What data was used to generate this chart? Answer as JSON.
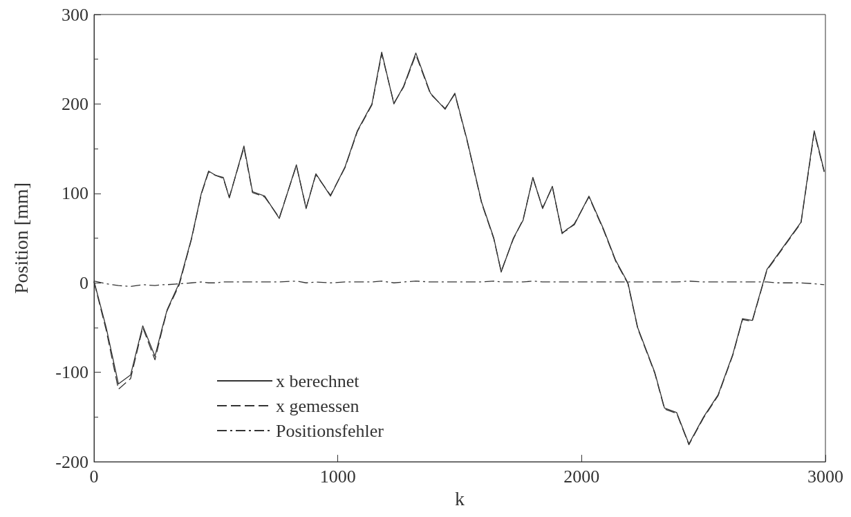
{
  "chart_data": {
    "type": "line",
    "xlabel": "k",
    "ylabel": "Position [mm]",
    "xlim": [
      0,
      3000
    ],
    "xticks": [
      0,
      1000,
      2000,
      3000
    ],
    "ylim": [
      -200,
      300
    ],
    "yticks": [
      -200,
      -100,
      0,
      100,
      200,
      300
    ],
    "grid": false,
    "legend": "bottom left",
    "marker": "none",
    "x": [
      0,
      50,
      100,
      150,
      200,
      250,
      280,
      300,
      350,
      400,
      440,
      470,
      500,
      530,
      555,
      615,
      650,
      700,
      760,
      830,
      870,
      910,
      970,
      1030,
      1080,
      1140,
      1180,
      1230,
      1270,
      1320,
      1380,
      1440,
      1480,
      1530,
      1590,
      1640,
      1670,
      1720,
      1760,
      1800,
      1840,
      1880,
      1920,
      1940,
      1970,
      2030,
      2090,
      2140,
      2190,
      2230,
      2300,
      2340,
      2390,
      2440,
      2500,
      2560,
      2620,
      2660,
      2700,
      2760,
      2800,
      2900,
      2954,
      2995
    ],
    "series": [
      {
        "name": "x berechnet",
        "color": "#333333",
        "line_style": "solid",
        "values": [
          2,
          -50,
          -113,
          -103,
          -48,
          -82,
          -50,
          -30,
          0,
          50,
          100,
          125,
          120,
          118,
          95,
          153,
          102,
          97,
          72,
          132,
          83,
          122,
          97,
          130,
          170,
          200,
          258,
          200,
          220,
          257,
          212,
          194,
          212,
          160,
          90,
          50,
          12,
          50,
          70,
          118,
          83,
          108,
          55,
          60,
          65,
          97,
          60,
          25,
          0,
          -50,
          -100,
          -140,
          -145,
          -180,
          -150,
          -125,
          -80,
          -40,
          -42,
          15,
          30,
          68,
          170,
          125
        ]
      },
      {
        "name": "x gemessen",
        "color": "#333333",
        "line_style": "dashed",
        "values": [
          1,
          -53,
          -119,
          -107,
          -50,
          -86,
          -52,
          -31,
          -2,
          49,
          99,
          124,
          120,
          117,
          96,
          151,
          101,
          96,
          73,
          131,
          84,
          121,
          98,
          129,
          169,
          199,
          256,
          201,
          219,
          255,
          211,
          195,
          211,
          159,
          89,
          49,
          13,
          49,
          71,
          117,
          84,
          107,
          56,
          59,
          66,
          96,
          59,
          24,
          -1,
          -51,
          -101,
          -141,
          -146,
          -181,
          -151,
          -126,
          -81,
          -41,
          -43,
          14,
          29,
          67,
          168,
          124
        ]
      },
      {
        "name": "Positionsfehler",
        "color": "#333333",
        "line_style": "dashdot",
        "values": [
          2,
          -1,
          -3,
          -4,
          -2,
          -3,
          -2,
          -2,
          -1,
          0,
          1,
          0,
          0,
          1,
          1,
          1,
          1,
          1,
          1,
          2,
          0,
          1,
          0,
          1,
          1,
          1,
          2,
          0,
          1,
          2,
          1,
          1,
          1,
          1,
          1,
          2,
          1,
          1,
          1,
          2,
          1,
          1,
          1,
          1,
          1,
          1,
          1,
          1,
          1,
          1,
          1,
          1,
          1,
          2,
          1,
          1,
          1,
          1,
          1,
          1,
          0,
          0,
          -1,
          -2
        ]
      }
    ]
  }
}
